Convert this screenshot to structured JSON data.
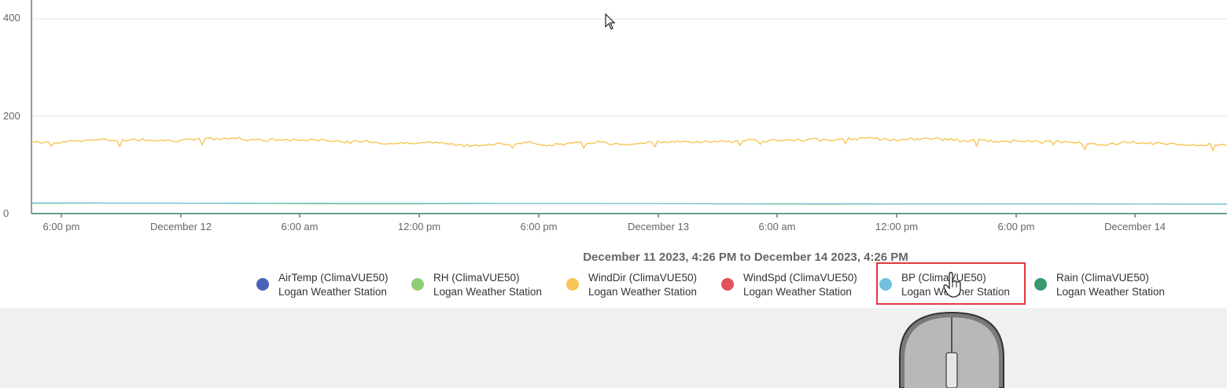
{
  "chart_data": {
    "type": "line",
    "y_ticks": [
      "400",
      "200",
      "0"
    ],
    "ylim": [
      0,
      440
    ],
    "x_ticks": [
      "6:00 pm",
      "December 12",
      "6:00 am",
      "12:00 pm",
      "6:00 pm",
      "December 13",
      "6:00 am",
      "12:00 pm",
      "6:00 pm",
      "December 14"
    ],
    "grid": true,
    "legend_position": "bottom",
    "range_title": "December 11 2023, 4:26 PM to December 14 2023, 4:26 PM",
    "series": [
      {
        "name": "AirTemp (ClimaVUE50)",
        "station": "Logan Weather Station",
        "color": "#4a62b8",
        "approx_value": 0.5
      },
      {
        "name": "RH (ClimaVUE50)",
        "station": "Logan Weather Station",
        "color": "#8fcf74",
        "approx_value": 20
      },
      {
        "name": "WindDir (ClimaVUE50)",
        "station": "Logan Weather Station",
        "color": "#f7c553",
        "approx_value": 150
      },
      {
        "name": "WindSpd (ClimaVUE50)",
        "station": "Logan Weather Station",
        "color": "#e0535a",
        "approx_value": 0
      },
      {
        "name": "BP (ClimaVUE50)",
        "station": "Logan Weather Station",
        "color": "#73c0de",
        "approx_value": 22
      },
      {
        "name": "Rain (ClimaVUE50)",
        "station": "Logan Weather Station",
        "color": "#3a9a6b",
        "approx_value": 0
      }
    ]
  }
}
